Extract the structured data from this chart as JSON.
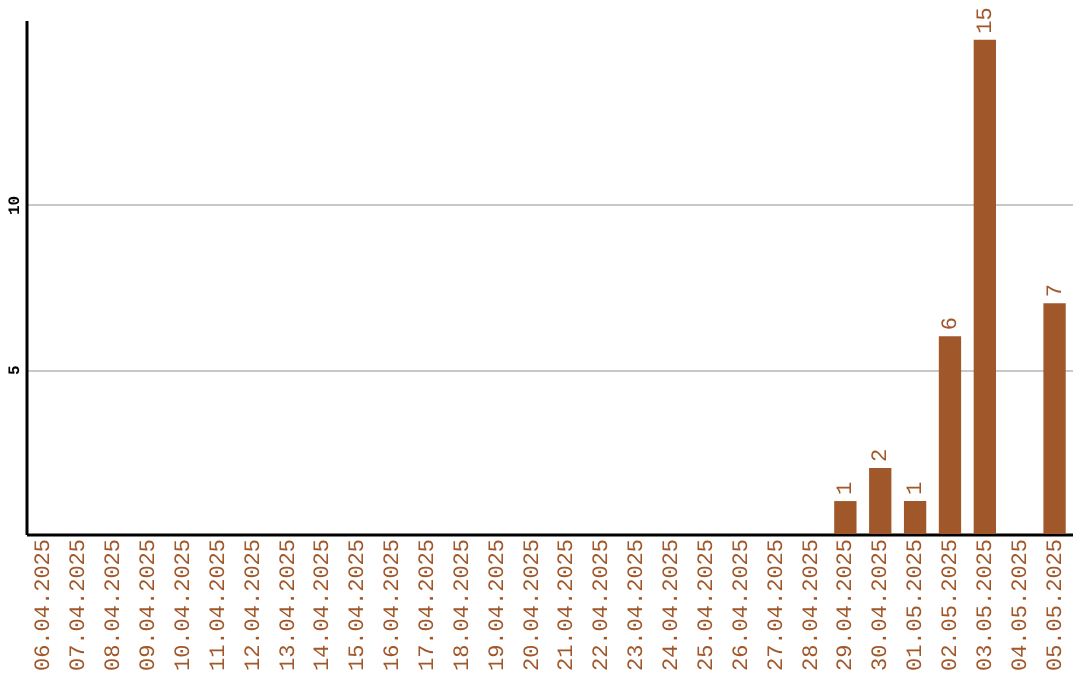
{
  "chart_data": {
    "type": "bar",
    "categories": [
      "06.04.2025",
      "07.04.2025",
      "08.04.2025",
      "09.04.2025",
      "10.04.2025",
      "11.04.2025",
      "12.04.2025",
      "13.04.2025",
      "14.04.2025",
      "15.04.2025",
      "16.04.2025",
      "17.04.2025",
      "18.04.2025",
      "19.04.2025",
      "20.04.2025",
      "21.04.2025",
      "22.04.2025",
      "23.04.2025",
      "24.04.2025",
      "25.04.2025",
      "26.04.2025",
      "27.04.2025",
      "28.04.2025",
      "29.04.2025",
      "30.04.2025",
      "01.05.2025",
      "02.05.2025",
      "03.05.2025",
      "04.05.2025",
      "05.05.2025"
    ],
    "values": [
      0,
      0,
      0,
      0,
      0,
      0,
      0,
      0,
      0,
      0,
      0,
      0,
      0,
      0,
      0,
      0,
      0,
      0,
      0,
      0,
      0,
      0,
      0,
      1,
      2,
      1,
      6,
      15,
      0,
      7
    ],
    "value_labels": [
      null,
      null,
      null,
      null,
      null,
      null,
      null,
      null,
      null,
      null,
      null,
      null,
      null,
      null,
      null,
      null,
      null,
      null,
      null,
      null,
      null,
      null,
      null,
      "1",
      "2",
      "1",
      "6",
      "15",
      null,
      "7"
    ],
    "color": "#a0572a",
    "ylim": [
      0,
      15.6
    ],
    "yticks": [
      5,
      10
    ],
    "grid": "y"
  }
}
